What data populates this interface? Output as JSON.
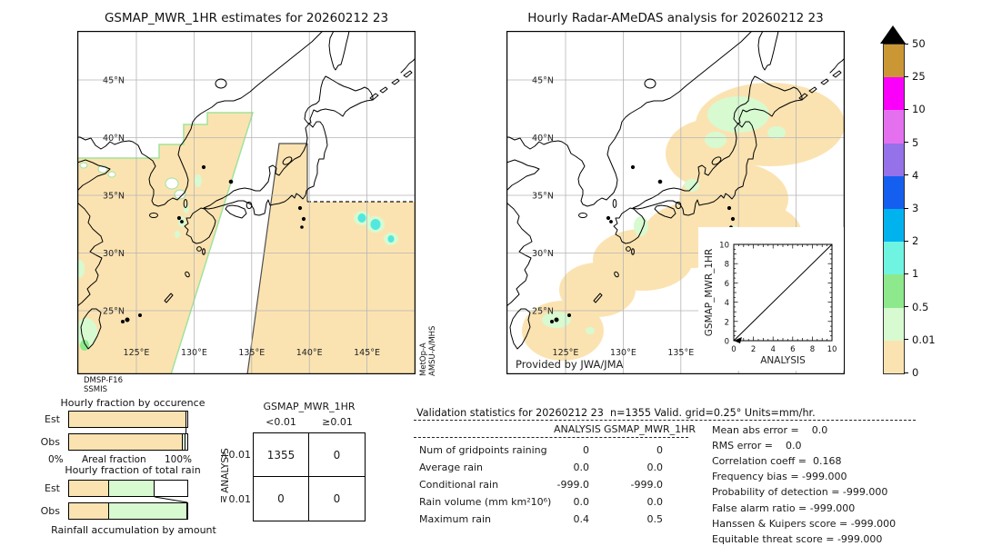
{
  "palette": {
    "tan_nodata": "#FBE3B1",
    "pale_green": "#D7FAD0",
    "green": "#8DE98C",
    "aqua": "#6FF4E2",
    "cyan_blue": "#00B3EF",
    "blue": "#155FF0",
    "purple": "#9571EA",
    "orchid": "#E470F0",
    "magenta": "#FA00FA",
    "goldenrod": "#CB9734",
    "blob_cyan": "#52E8E0",
    "swath_edge_green": "#9FE39B",
    "swath_edge_dark": "#4D4D4D",
    "grid_gray": "#B5B5B5"
  },
  "left_panel": {
    "title": "GSMAP_MWR_1HR estimates for 20260212 23",
    "sensor_labels": [
      "DMSP-F16",
      "SSMIS"
    ],
    "side_sensor_labels": [
      "MetOp-A",
      "AMSU-A/MHS"
    ],
    "lat_labels": [
      "45°N",
      "40°N",
      "35°N",
      "30°N",
      "25°N"
    ],
    "lon_labels": [
      "125°E",
      "130°E",
      "135°E",
      "140°E",
      "145°E"
    ]
  },
  "right_panel": {
    "title": "Hourly Radar-AMeDAS analysis for 20260212 23",
    "credit": "Provided by JWA/JMA",
    "lat_labels": [
      "45°N",
      "40°N",
      "35°N",
      "30°N",
      "25°N"
    ],
    "lon_labels": [
      "125°E",
      "130°E",
      "135°E"
    ],
    "inset": {
      "xlabel": "ANALYSIS",
      "ylabel": "GSMAP_MWR_1HR",
      "xticks": [
        "0",
        "2",
        "4",
        "6",
        "8",
        "10"
      ],
      "yticks": [
        "0",
        "2",
        "4",
        "6",
        "8",
        "10"
      ]
    }
  },
  "colorbar": {
    "tick_labels": [
      "50",
      "25",
      "10",
      "5",
      "4",
      "3",
      "2",
      "1",
      "0.5",
      "0.01",
      "0"
    ],
    "band_colors_top_to_bottom": [
      "#CB9734",
      "#FA00FA",
      "#E470F0",
      "#9571EA",
      "#155FF0",
      "#00B3EF",
      "#6FF4E2",
      "#8DE98C",
      "#D7FAD0",
      "#FBE3B1"
    ],
    "units": "mm/hr"
  },
  "occurrence_chart": {
    "title": "Hourly fraction by occurence",
    "xlabels": [
      "0%",
      "Areal fraction",
      "100%"
    ],
    "rows": [
      {
        "label": "Est",
        "segments": [
          {
            "color": "tan_nodata",
            "pct": 99.0
          }
        ]
      },
      {
        "label": "Obs",
        "segments": [
          {
            "color": "tan_nodata",
            "pct": 96.2
          },
          {
            "color": "pale_green",
            "pct": 2.6
          }
        ]
      }
    ]
  },
  "totalrain_chart": {
    "title": "Hourly fraction of total rain",
    "caption": "Rainfall accumulation by amount",
    "rows": [
      {
        "label": "Est",
        "segments": [
          {
            "color": "tan_nodata",
            "pct": 33.5
          },
          {
            "color": "pale_green",
            "pct": 39.0
          }
        ]
      },
      {
        "label": "Obs",
        "segments": [
          {
            "color": "tan_nodata",
            "pct": 33.5
          },
          {
            "color": "pale_green",
            "pct": 66.5
          }
        ]
      }
    ]
  },
  "contingency_table": {
    "title": "GSMAP_MWR_1HR",
    "row_axis_label": "ANALYSIS",
    "col_labels": [
      "<0.01",
      "≥0.01"
    ],
    "row_labels": [
      "<0.01",
      "≥0.01"
    ],
    "values": [
      [
        "1355",
        "0"
      ],
      [
        "0",
        "0"
      ]
    ]
  },
  "stats": {
    "header": "Validation statistics for 20260212 23  n=1355 Valid. grid=0.25° Units=mm/hr.",
    "columns": [
      "ANALYSIS",
      "GSMAP_MWR_1HR"
    ],
    "rows": [
      [
        "Num of gridpoints raining",
        "0",
        "0"
      ],
      [
        "Average rain",
        "0.0",
        "0.0"
      ],
      [
        "Conditional rain",
        "-999.0",
        "-999.0"
      ],
      [
        "Rain volume (mm km²10⁶)",
        "0.0",
        "0.0"
      ],
      [
        "Maximum rain",
        "0.4",
        "0.5"
      ]
    ],
    "scores": [
      "Mean abs error =    0.0",
      "RMS error =    0.0",
      "Correlation coeff =  0.168",
      "Frequency bias = -999.000",
      "Probability of detection = -999.000",
      "False alarm ratio = -999.000",
      "Hanssen & Kuipers score = -999.000",
      "Equitable threat score = -999.000"
    ]
  },
  "chart_data": [
    {
      "type": "heatmap",
      "title": "GSMAP_MWR_1HR estimates for 20260212 23",
      "description": "Satellite microwave rain-rate map (mm/hr), Japan region ~120-149E / 20-49N. Swath coverage shaded 0-0.01 mm/hr; light rain cells (0.01-2 mm/hr) near 145-148E 32-34N, near Taiwan and 30N left edge.",
      "sensors": [
        "DMSP-F16 SSMIS",
        "MetOp-A AMSU-A/MHS"
      ]
    },
    {
      "type": "heatmap",
      "title": "Hourly Radar-AMeDAS analysis for 20260212 23",
      "description": "Radar-gauge analysis rain-rate map (mm/hr); coverage band along Japanese archipelago from Hokkaido to Okinawa, mostly 0-0.01 mm/hr with scattered 0.01-0.5 mm/hr patches.",
      "source": "Provided by JWA/JMA"
    },
    {
      "type": "bar",
      "title": "Hourly fraction by occurence",
      "categories": [
        "Est",
        "Obs"
      ],
      "series": [
        {
          "name": "0-0.01 mm/hr",
          "values": [
            99.0,
            96.2
          ]
        },
        {
          "name": "0.01-0.5 mm/hr",
          "values": [
            0.0,
            2.6
          ]
        }
      ],
      "xlabel": "Areal fraction",
      "xlim": [
        0,
        100
      ],
      "units": "%"
    },
    {
      "type": "bar",
      "title": "Hourly fraction of total rain",
      "categories": [
        "Est",
        "Obs"
      ],
      "series": [
        {
          "name": "0-0.01 mm/hr",
          "values": [
            33.5,
            33.5
          ]
        },
        {
          "name": "0.01-0.5 mm/hr",
          "values": [
            39.0,
            66.5
          ]
        }
      ],
      "xlabel": "Rainfall accumulation by amount",
      "xlim": [
        0,
        100
      ],
      "units": "%"
    },
    {
      "type": "table",
      "title": "Contingency table GSMAP_MWR_1HR vs ANALYSIS",
      "columns": [
        "<0.01",
        "≥0.01"
      ],
      "rows": [
        "<0.01",
        "≥0.01"
      ],
      "values": [
        [
          1355,
          0
        ],
        [
          0,
          0
        ]
      ]
    },
    {
      "type": "line",
      "title": "Scatter inset 1:1 reference line",
      "xlabel": "ANALYSIS",
      "ylabel": "GSMAP_MWR_1HR",
      "x": [
        0,
        10
      ],
      "y": [
        0,
        10
      ],
      "xlim": [
        0,
        10
      ],
      "ylim": [
        0,
        10
      ]
    },
    {
      "type": "bar",
      "title": "Rain rate color scale (mm/hr)",
      "categories": [
        "0-0.01",
        "0.01-0.5",
        "0.5-1",
        "1-2",
        "2-3",
        "3-4",
        "4-5",
        "5-10",
        "10-25",
        "25-50",
        ">50"
      ],
      "values": [
        0.01,
        0.5,
        1,
        2,
        3,
        4,
        5,
        10,
        25,
        50,
        50
      ]
    }
  ]
}
